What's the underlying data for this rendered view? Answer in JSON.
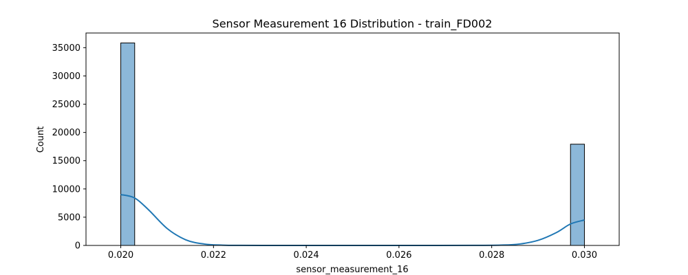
{
  "chart_data": {
    "type": "bar",
    "subtype": "histogram-with-kde",
    "title": "Sensor Measurement 16 Distribution - train_FD002",
    "xlabel": "sensor_measurement_16",
    "ylabel": "Count",
    "xlim": [
      0.01925,
      0.03075
    ],
    "ylim": [
      0,
      37600
    ],
    "x_ticks": [
      0.02,
      0.022,
      0.024,
      0.026,
      0.028,
      0.03
    ],
    "x_tick_labels": [
      "0.020",
      "0.022",
      "0.024",
      "0.026",
      "0.028",
      "0.030"
    ],
    "y_ticks": [
      0,
      5000,
      10000,
      15000,
      20000,
      25000,
      30000,
      35000
    ],
    "y_tick_labels": [
      "0",
      "5000",
      "10000",
      "15000",
      "20000",
      "25000",
      "30000",
      "35000"
    ],
    "bins": [
      {
        "x0": 0.02,
        "x1": 0.0203,
        "count": 35840
      },
      {
        "x0": 0.0297,
        "x1": 0.03,
        "count": 17920
      }
    ],
    "kde": {
      "x": [
        0.02,
        0.0203,
        0.0206,
        0.021,
        0.0214,
        0.0218,
        0.0222,
        0.0226,
        0.024,
        0.026,
        0.0276,
        0.0282,
        0.0286,
        0.029,
        0.0294,
        0.0297,
        0.03
      ],
      "y": [
        9000,
        8400,
        6300,
        3000,
        1000,
        250,
        50,
        10,
        0,
        0,
        10,
        60,
        250,
        900,
        2300,
        3800,
        4500
      ]
    },
    "grid": false,
    "bar_color": "#8cb8d9",
    "bar_edge_color": "#000000",
    "kde_color": "#1f77b4"
  }
}
